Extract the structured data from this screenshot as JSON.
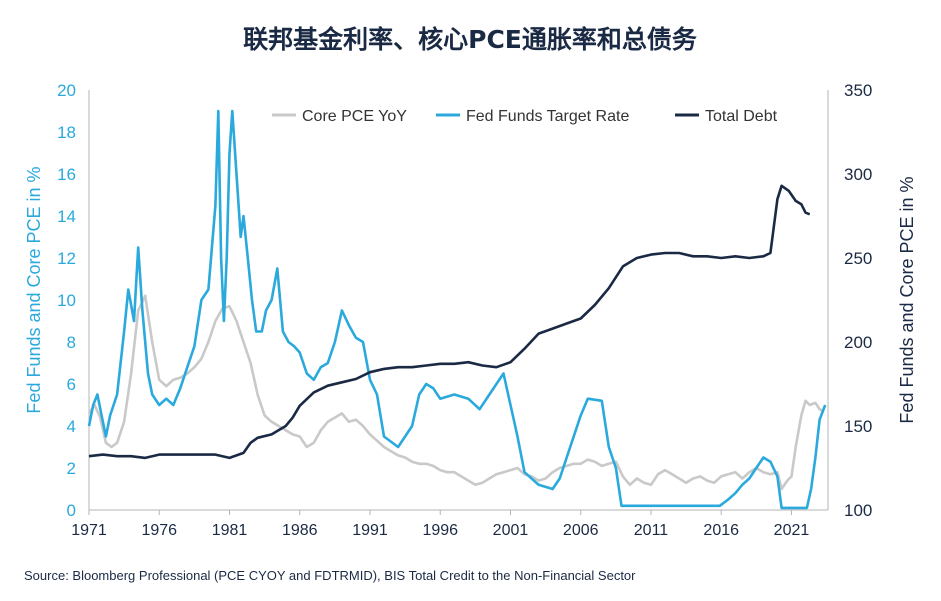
{
  "title": "联邦基金利率、核心PCE通胀率和总债务",
  "source": "Source: Bloomberg Professional (PCE CYOY and FDTRMID), BIS Total Credit to the Non-Financial Sector",
  "colors": {
    "core_pce": "#c9c9c9",
    "fed_funds": "#2aa9dd",
    "total_debt": "#1b2a44",
    "axis": "#b5b5b5"
  },
  "chart_data": {
    "type": "line",
    "title": "联邦基金利率、核心PCE通胀率和总债务",
    "x_ticks": [
      "1971",
      "1976",
      "1981",
      "1986",
      "1991",
      "1996",
      "2001",
      "2006",
      "2011",
      "2016",
      "2021"
    ],
    "xlim": [
      1971,
      2023.6
    ],
    "y_left": {
      "label": "Fed Funds and Core PCE in %",
      "ticks": [
        "0",
        "2",
        "4",
        "6",
        "8",
        "10",
        "12",
        "14",
        "16",
        "18",
        "20"
      ],
      "range": [
        0,
        20
      ]
    },
    "y_right": {
      "label": "Fed Funds and Core PCE in %",
      "ticks": [
        "100",
        "150",
        "200",
        "250",
        "300",
        "350"
      ],
      "range": [
        100,
        350
      ]
    },
    "legend": [
      "Core PCE YoY",
      "Fed Funds Target Rate",
      "Total Debt"
    ],
    "legend_position": "top",
    "series": [
      {
        "name": "Core PCE YoY",
        "axis": "left",
        "points": [
          [
            1971,
            4.6
          ],
          [
            1971.4,
            5
          ],
          [
            1971.8,
            4.4
          ],
          [
            1972.2,
            3.2
          ],
          [
            1972.6,
            3
          ],
          [
            1973,
            3.2
          ],
          [
            1973.5,
            4.2
          ],
          [
            1974,
            6.5
          ],
          [
            1974.5,
            9.5
          ],
          [
            1975,
            10.2
          ],
          [
            1975.5,
            8
          ],
          [
            1976,
            6.2
          ],
          [
            1976.5,
            5.9
          ],
          [
            1977,
            6.2
          ],
          [
            1977.5,
            6.3
          ],
          [
            1978,
            6.5
          ],
          [
            1978.5,
            6.8
          ],
          [
            1979,
            7.2
          ],
          [
            1979.5,
            8
          ],
          [
            1980,
            9
          ],
          [
            1980.5,
            9.6
          ],
          [
            1981,
            9.7
          ],
          [
            1981.5,
            9
          ],
          [
            1982,
            8
          ],
          [
            1982.5,
            7
          ],
          [
            1983,
            5.5
          ],
          [
            1983.5,
            4.5
          ],
          [
            1984,
            4.2
          ],
          [
            1984.5,
            4
          ],
          [
            1985,
            3.8
          ],
          [
            1985.5,
            3.6
          ],
          [
            1986,
            3.5
          ],
          [
            1986.5,
            3
          ],
          [
            1987,
            3.2
          ],
          [
            1987.5,
            3.8
          ],
          [
            1988,
            4.2
          ],
          [
            1988.5,
            4.4
          ],
          [
            1989,
            4.6
          ],
          [
            1989.5,
            4.2
          ],
          [
            1990,
            4.3
          ],
          [
            1990.5,
            4
          ],
          [
            1991,
            3.6
          ],
          [
            1991.5,
            3.3
          ],
          [
            1992,
            3
          ],
          [
            1992.5,
            2.8
          ],
          [
            1993,
            2.6
          ],
          [
            1993.5,
            2.5
          ],
          [
            1994,
            2.3
          ],
          [
            1994.5,
            2.2
          ],
          [
            1995,
            2.2
          ],
          [
            1995.5,
            2.1
          ],
          [
            1996,
            1.9
          ],
          [
            1996.5,
            1.8
          ],
          [
            1997,
            1.8
          ],
          [
            1997.5,
            1.6
          ],
          [
            1998,
            1.4
          ],
          [
            1998.5,
            1.2
          ],
          [
            1999,
            1.3
          ],
          [
            1999.5,
            1.5
          ],
          [
            2000,
            1.7
          ],
          [
            2000.5,
            1.8
          ],
          [
            2001,
            1.9
          ],
          [
            2001.5,
            2
          ],
          [
            2002,
            1.7
          ],
          [
            2002.5,
            1.6
          ],
          [
            2003,
            1.4
          ],
          [
            2003.5,
            1.5
          ],
          [
            2004,
            1.8
          ],
          [
            2004.5,
            2
          ],
          [
            2005,
            2.1
          ],
          [
            2005.5,
            2.2
          ],
          [
            2006,
            2.2
          ],
          [
            2006.5,
            2.4
          ],
          [
            2007,
            2.3
          ],
          [
            2007.5,
            2.1
          ],
          [
            2008,
            2.2
          ],
          [
            2008.5,
            2.3
          ],
          [
            2009,
            1.6
          ],
          [
            2009.5,
            1.2
          ],
          [
            2010,
            1.5
          ],
          [
            2010.5,
            1.3
          ],
          [
            2011,
            1.2
          ],
          [
            2011.5,
            1.7
          ],
          [
            2012,
            1.9
          ],
          [
            2012.5,
            1.7
          ],
          [
            2013,
            1.5
          ],
          [
            2013.5,
            1.3
          ],
          [
            2014,
            1.5
          ],
          [
            2014.5,
            1.6
          ],
          [
            2015,
            1.4
          ],
          [
            2015.5,
            1.3
          ],
          [
            2016,
            1.6
          ],
          [
            2016.5,
            1.7
          ],
          [
            2017,
            1.8
          ],
          [
            2017.5,
            1.5
          ],
          [
            2018,
            1.8
          ],
          [
            2018.5,
            2
          ],
          [
            2019,
            1.8
          ],
          [
            2019.5,
            1.7
          ],
          [
            2020,
            1.8
          ],
          [
            2020.3,
            1
          ],
          [
            2020.7,
            1.4
          ],
          [
            2021,
            1.6
          ],
          [
            2021.3,
            3
          ],
          [
            2021.7,
            4.5
          ],
          [
            2022,
            5.2
          ],
          [
            2022.3,
            5
          ],
          [
            2022.7,
            5.1
          ],
          [
            2023,
            4.8
          ],
          [
            2023.3,
            4.7
          ]
        ]
      },
      {
        "name": "Fed Funds Target Rate",
        "axis": "left",
        "points": [
          [
            1971,
            4
          ],
          [
            1971.3,
            5
          ],
          [
            1971.6,
            5.5
          ],
          [
            1971.9,
            4.5
          ],
          [
            1972.2,
            3.5
          ],
          [
            1972.5,
            4.5
          ],
          [
            1973,
            5.5
          ],
          [
            1973.5,
            8.5
          ],
          [
            1973.8,
            10.5
          ],
          [
            1974.2,
            9
          ],
          [
            1974.5,
            12.5
          ],
          [
            1974.8,
            9.5
          ],
          [
            1975.2,
            6.5
          ],
          [
            1975.5,
            5.5
          ],
          [
            1976,
            5
          ],
          [
            1976.5,
            5.3
          ],
          [
            1977,
            5
          ],
          [
            1977.5,
            5.8
          ],
          [
            1978,
            6.8
          ],
          [
            1978.5,
            7.8
          ],
          [
            1979,
            10
          ],
          [
            1979.5,
            10.5
          ],
          [
            1980,
            14.5
          ],
          [
            1980.2,
            19
          ],
          [
            1980.4,
            12
          ],
          [
            1980.6,
            9
          ],
          [
            1980.8,
            12
          ],
          [
            1981,
            17
          ],
          [
            1981.2,
            19
          ],
          [
            1981.5,
            16
          ],
          [
            1981.8,
            13
          ],
          [
            1982,
            14
          ],
          [
            1982.3,
            12
          ],
          [
            1982.6,
            10
          ],
          [
            1982.9,
            8.5
          ],
          [
            1983.3,
            8.5
          ],
          [
            1983.6,
            9.5
          ],
          [
            1984,
            10
          ],
          [
            1984.4,
            11.5
          ],
          [
            1984.8,
            8.5
          ],
          [
            1985.2,
            8
          ],
          [
            1985.6,
            7.8
          ],
          [
            1986,
            7.5
          ],
          [
            1986.5,
            6.5
          ],
          [
            1987,
            6.2
          ],
          [
            1987.5,
            6.8
          ],
          [
            1988,
            7
          ],
          [
            1988.5,
            8
          ],
          [
            1989,
            9.5
          ],
          [
            1989.5,
            8.8
          ],
          [
            1990,
            8.2
          ],
          [
            1990.5,
            8
          ],
          [
            1991,
            6.2
          ],
          [
            1991.5,
            5.5
          ],
          [
            1992,
            3.5
          ],
          [
            1993,
            3
          ],
          [
            1994,
            4
          ],
          [
            1994.5,
            5.5
          ],
          [
            1995,
            6
          ],
          [
            1995.5,
            5.8
          ],
          [
            1996,
            5.3
          ],
          [
            1997,
            5.5
          ],
          [
            1998,
            5.3
          ],
          [
            1998.8,
            4.8
          ],
          [
            1999.5,
            5.5
          ],
          [
            2000,
            6
          ],
          [
            2000.5,
            6.5
          ],
          [
            2001,
            5
          ],
          [
            2001.5,
            3.5
          ],
          [
            2002,
            1.8
          ],
          [
            2003,
            1.2
          ],
          [
            2004,
            1
          ],
          [
            2004.5,
            1.5
          ],
          [
            2005,
            2.5
          ],
          [
            2005.5,
            3.5
          ],
          [
            2006,
            4.5
          ],
          [
            2006.5,
            5.3
          ],
          [
            2007.5,
            5.2
          ],
          [
            2008,
            3
          ],
          [
            2008.5,
            2
          ],
          [
            2008.9,
            0.2
          ],
          [
            2015.9,
            0.2
          ],
          [
            2016.5,
            0.5
          ],
          [
            2017,
            0.8
          ],
          [
            2017.5,
            1.2
          ],
          [
            2018,
            1.5
          ],
          [
            2018.5,
            2
          ],
          [
            2019,
            2.5
          ],
          [
            2019.5,
            2.3
          ],
          [
            2020,
            1.6
          ],
          [
            2020.3,
            0.1
          ],
          [
            2022.1,
            0.1
          ],
          [
            2022.4,
            1
          ],
          [
            2022.7,
            2.5
          ],
          [
            2023,
            4.3
          ],
          [
            2023.4,
            5
          ]
        ]
      },
      {
        "name": "Total Debt",
        "axis": "right",
        "points": [
          [
            1971,
            132
          ],
          [
            1972,
            133
          ],
          [
            1973,
            132
          ],
          [
            1974,
            132
          ],
          [
            1975,
            131
          ],
          [
            1976,
            133
          ],
          [
            1977,
            133
          ],
          [
            1978,
            133
          ],
          [
            1979,
            133
          ],
          [
            1980,
            133
          ],
          [
            1981,
            131
          ],
          [
            1982,
            134
          ],
          [
            1982.5,
            140
          ],
          [
            1983,
            143
          ],
          [
            1984,
            145
          ],
          [
            1985,
            150
          ],
          [
            1985.5,
            155
          ],
          [
            1986,
            162
          ],
          [
            1987,
            170
          ],
          [
            1988,
            174
          ],
          [
            1989,
            176
          ],
          [
            1990,
            178
          ],
          [
            1991,
            182
          ],
          [
            1992,
            184
          ],
          [
            1993,
            185
          ],
          [
            1994,
            185
          ],
          [
            1995,
            186
          ],
          [
            1996,
            187
          ],
          [
            1997,
            187
          ],
          [
            1998,
            188
          ],
          [
            1999,
            186
          ],
          [
            2000,
            185
          ],
          [
            2001,
            188
          ],
          [
            2002,
            196
          ],
          [
            2003,
            205
          ],
          [
            2004,
            208
          ],
          [
            2005,
            211
          ],
          [
            2006,
            214
          ],
          [
            2007,
            222
          ],
          [
            2008,
            232
          ],
          [
            2009,
            245
          ],
          [
            2010,
            250
          ],
          [
            2011,
            252
          ],
          [
            2012,
            253
          ],
          [
            2013,
            253
          ],
          [
            2014,
            251
          ],
          [
            2015,
            251
          ],
          [
            2016,
            250
          ],
          [
            2017,
            251
          ],
          [
            2018,
            250
          ],
          [
            2019,
            251
          ],
          [
            2019.5,
            253
          ],
          [
            2020,
            285
          ],
          [
            2020.3,
            293
          ],
          [
            2020.8,
            290
          ],
          [
            2021.3,
            284
          ],
          [
            2021.7,
            282
          ],
          [
            2022,
            277
          ],
          [
            2022.3,
            276
          ]
        ]
      }
    ]
  }
}
